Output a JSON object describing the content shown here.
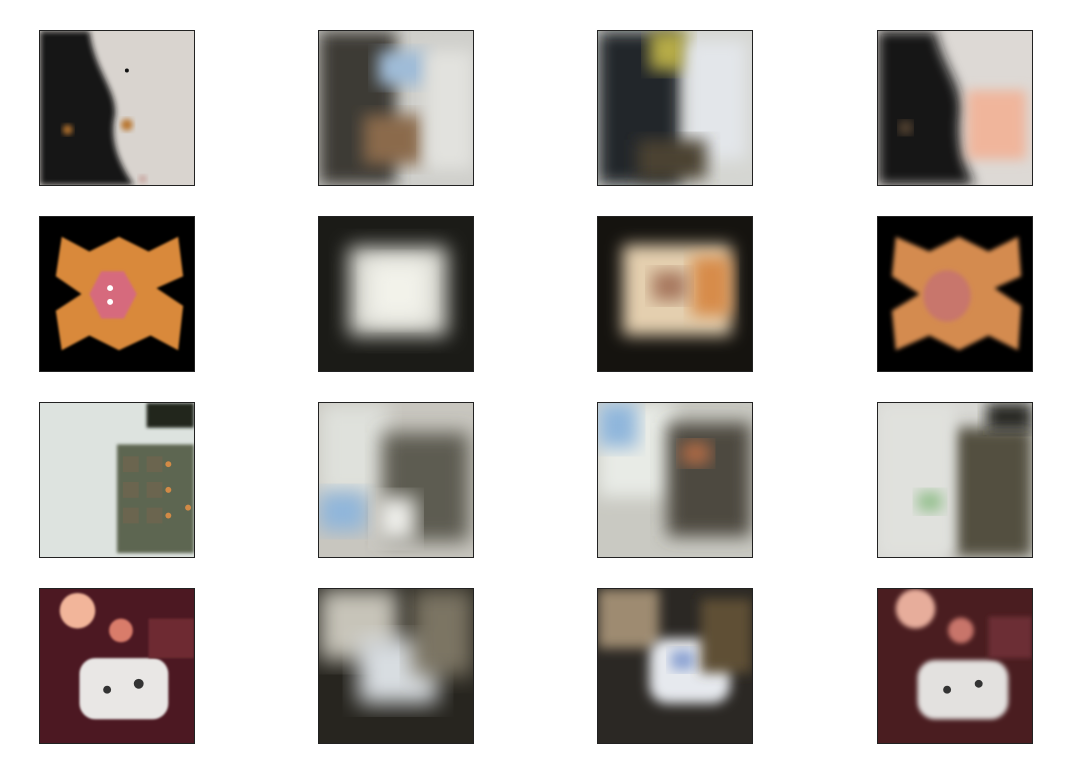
{
  "figure": {
    "rows": 4,
    "cols": 4,
    "palette": {
      "white": "#f5f5f5",
      "dark": "#151515",
      "orange": "#d88a3d",
      "maroon": "#5a1f27",
      "gray_green": "#5b6151",
      "sky_blue": "#a8c7e6"
    },
    "tiles": [
      [
        "cat-dark-light-bg",
        "cat-blur-1",
        "cat-blur-2",
        "cat-blur-3"
      ],
      [
        "orange-cat-black-frame",
        "orange-cat-blur-1",
        "orange-cat-blur-2",
        "orange-cat-blur-3"
      ],
      [
        "vehicle-light-bg",
        "vehicle-blur-1",
        "vehicle-blur-2",
        "vehicle-blur-3"
      ],
      [
        "dog-maroon-bg",
        "dog-blur-1",
        "dog-blur-2",
        "dog-blur-3"
      ]
    ]
  }
}
